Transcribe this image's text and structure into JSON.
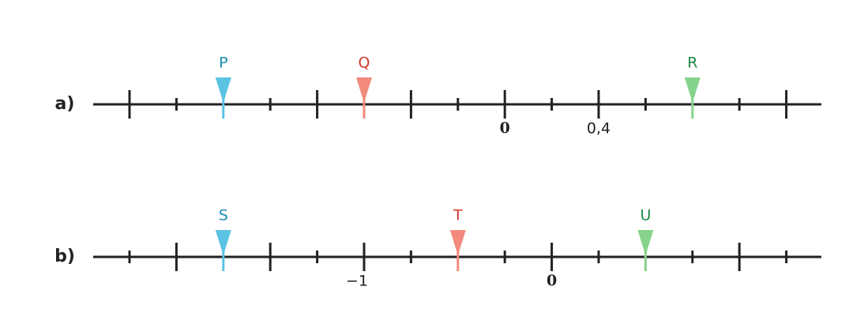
{
  "rows": [
    {
      "label": "a)",
      "markers": [
        {
          "label": "P"
        },
        {
          "label": "Q"
        },
        {
          "label": "R"
        }
      ],
      "tick_labels": [
        "0",
        "0,4"
      ]
    },
    {
      "label": "b)",
      "markers": [
        {
          "label": "S"
        },
        {
          "label": "T"
        },
        {
          "label": "U"
        }
      ],
      "tick_labels": [
        "−1",
        "0"
      ]
    }
  ]
}
